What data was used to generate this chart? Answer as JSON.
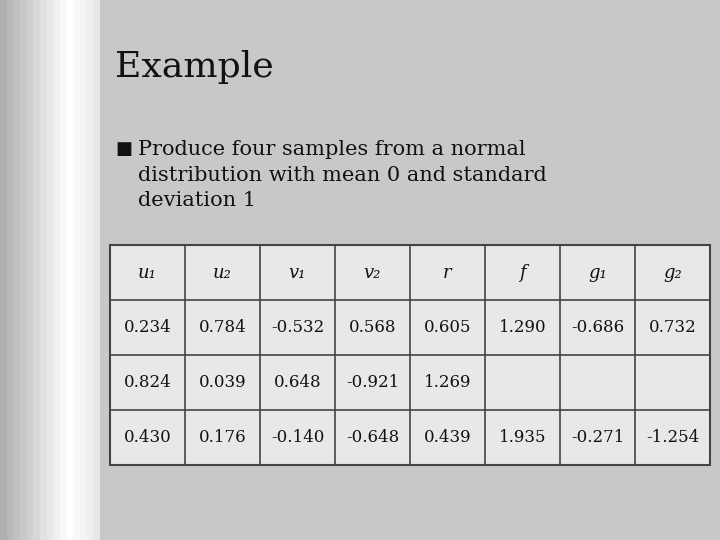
{
  "title": "Example",
  "bullet_text": "Produce four samples from a normal\ndistribution with mean 0 and standard\ndeviation 1",
  "bullet_symbol": "■",
  "background_color": "#c8c8c8",
  "table_headers": [
    "u₁",
    "u₂",
    "v₁",
    "v₂",
    "r",
    "f",
    "g₁",
    "g₂"
  ],
  "table_rows": [
    [
      "0.234",
      "0.784",
      "-0.532",
      "0.568",
      "0.605",
      "1.290",
      "-0.686",
      "0.732"
    ],
    [
      "0.824",
      "0.039",
      "0.648",
      "-0.921",
      "1.269",
      "",
      "",
      ""
    ],
    [
      "0.430",
      "0.176",
      "-0.140",
      "-0.648",
      "0.439",
      "1.935",
      "-0.271",
      "-1.254"
    ]
  ],
  "title_fontsize": 26,
  "bullet_fontsize": 15,
  "table_header_fontsize": 13,
  "table_data_fontsize": 12,
  "title_color": "#111111",
  "text_color": "#111111",
  "table_bg": "#e8e8e8",
  "table_line_color": "#444444",
  "left_stripe_colors": [
    "#b0b0b0",
    "#b8b8b8",
    "#c0c0c0",
    "#c8c8c8",
    "#d0d0d0",
    "#d8d8d8",
    "#e0e0e0",
    "#e8e8e8",
    "#f0f0f0",
    "#f8f8f8",
    "#ffffff",
    "#f8f8f8",
    "#f4f4f4",
    "#eeeeee",
    "#e8e8e8"
  ]
}
